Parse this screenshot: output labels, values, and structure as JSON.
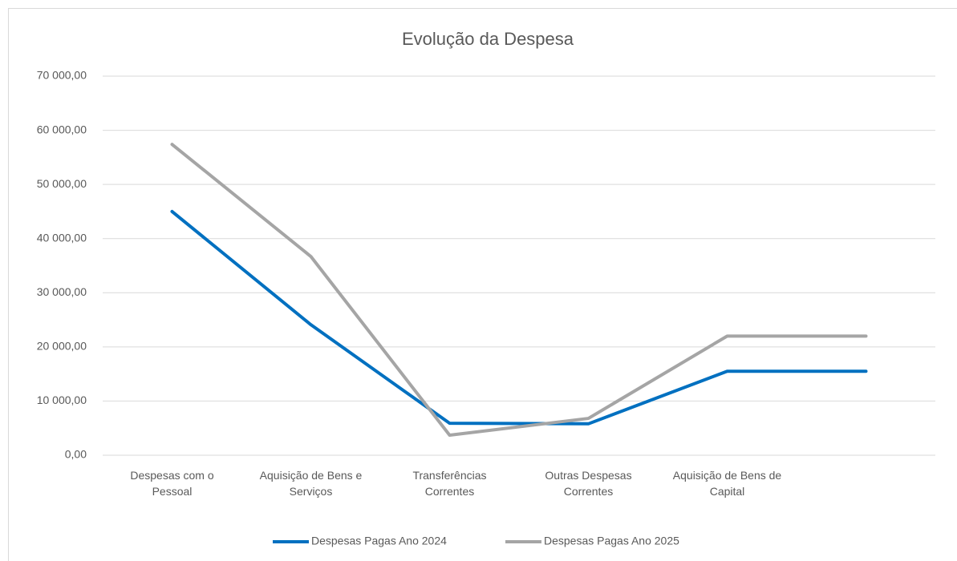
{
  "chart_data": {
    "type": "line",
    "title": "Evolução da Despesa",
    "categories": [
      "Despesas com o Pessoal",
      "Aquisição de Bens e Serviços",
      "Transferências Correntes",
      "Outras Despesas Correntes",
      "Aquisição de Bens de Capital",
      null
    ],
    "series": [
      {
        "name": "Despesas Pagas Ano 2024",
        "color": "#0070c0",
        "values": [
          45000,
          24100,
          5900,
          5800,
          15500,
          15500
        ]
      },
      {
        "name": "Despesas Pagas Ano 2025",
        "color": "#a5a5a5",
        "values": [
          57400,
          36700,
          3700,
          6800,
          22000,
          22000
        ]
      }
    ],
    "ylim": [
      0,
      70000
    ],
    "yticks": [
      {
        "value": 0,
        "label": "0,00"
      },
      {
        "value": 10000,
        "label": "10 000,00"
      },
      {
        "value": 20000,
        "label": "20 000,00"
      },
      {
        "value": 30000,
        "label": "30 000,00"
      },
      {
        "value": 40000,
        "label": "40 000,00"
      },
      {
        "value": 50000,
        "label": "50 000,00"
      },
      {
        "value": 60000,
        "label": "60 000,00"
      },
      {
        "value": 70000,
        "label": "70 000,00"
      }
    ],
    "grid": true,
    "legend": "bottom"
  }
}
